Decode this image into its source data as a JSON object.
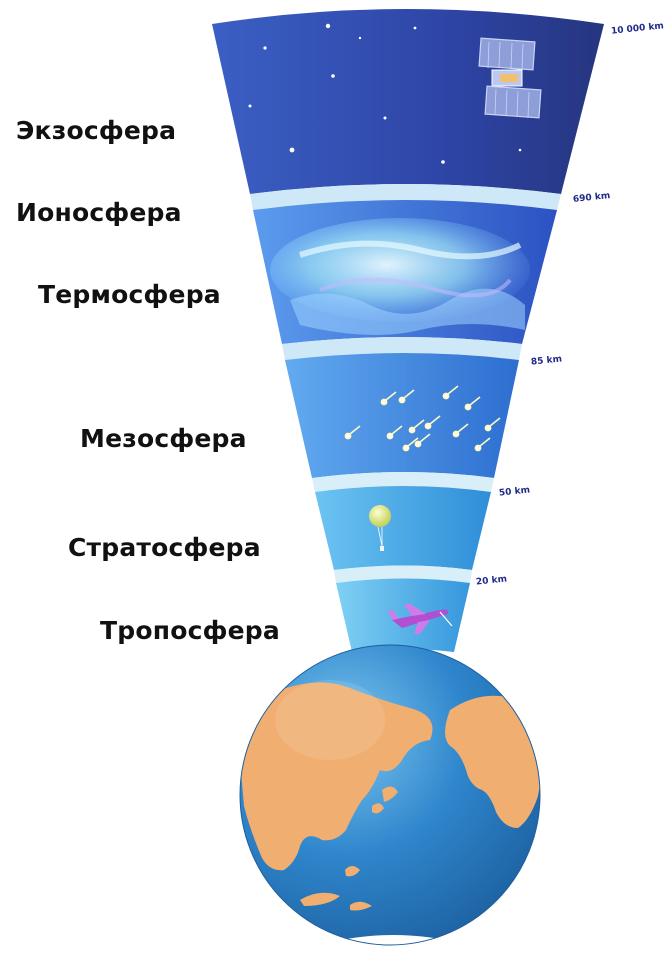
{
  "layers": [
    {
      "id": "exosphere",
      "label": "Экзосфера"
    },
    {
      "id": "ionosphere",
      "label": "Ионосфера"
    },
    {
      "id": "thermosphere",
      "label": "Термосфера"
    },
    {
      "id": "mesosphere",
      "label": "Мезосфера"
    },
    {
      "id": "stratosphere",
      "label": "Стратосфера"
    },
    {
      "id": "troposphere",
      "label": "Тропосфера"
    }
  ],
  "altitudes": [
    "10 000 km",
    "690 km",
    "85 km",
    "50 km",
    "20 km"
  ],
  "colors": {
    "exosphere": "#2a3f9e",
    "thermosphere": "#3f73d8",
    "mesosphere": "#3b82dc",
    "stratosphere": "#35a6e6",
    "troposphere": "#3aa9e8",
    "band": "#cfe8f8",
    "ocean": "#2a7fc6",
    "land": "#f0ae70",
    "label_text": "#111111",
    "altitude_text": "#1f2a8a"
  },
  "icons": [
    "satellite-icon",
    "stars",
    "aurora",
    "meteors-icon",
    "weather-balloon-icon",
    "airplane-icon",
    "earth-globe"
  ]
}
